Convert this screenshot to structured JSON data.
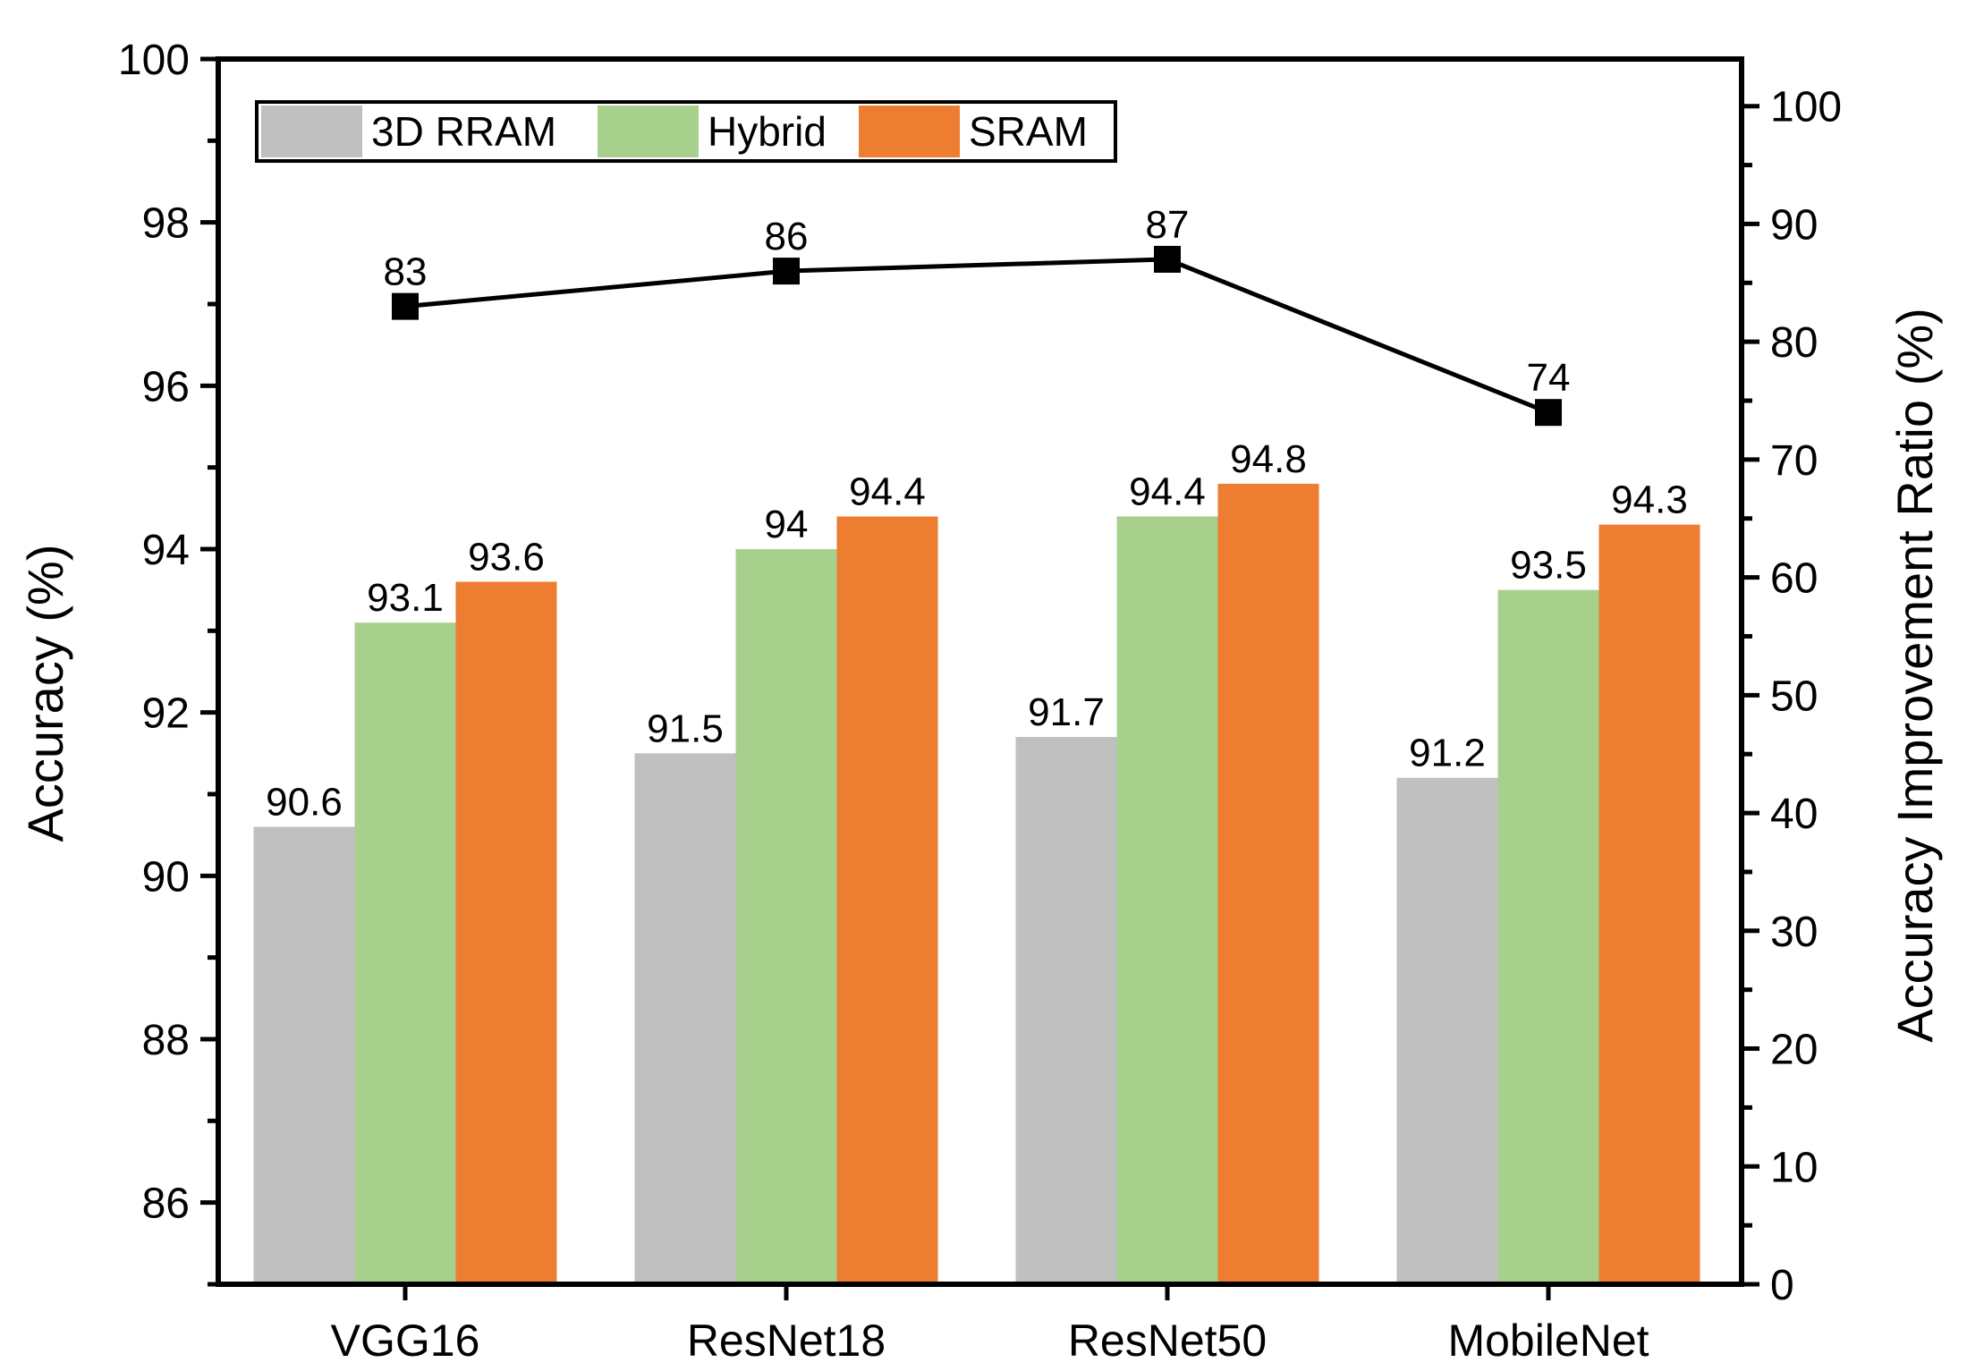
{
  "chart_data": {
    "type": "bar",
    "title": "",
    "categories": [
      "VGG16",
      "ResNet18",
      "ResNet50",
      "MobileNet"
    ],
    "series": [
      {
        "name": "3D RRAM",
        "color": "#c0c0c0",
        "values": [
          90.6,
          91.5,
          91.7,
          91.2
        ],
        "labels": [
          "90.6",
          "91.5",
          "91.7",
          "91.2"
        ]
      },
      {
        "name": "Hybrid",
        "color": "#a8d08d",
        "values": [
          93.1,
          94,
          94.4,
          93.5
        ],
        "labels": [
          "93.1",
          "94",
          "94.4",
          "93.5"
        ]
      },
      {
        "name": "SRAM",
        "color": "#ed7d31",
        "values": [
          93.6,
          94.4,
          94.8,
          94.3
        ],
        "labels": [
          "93.6",
          "94.4",
          "94.8",
          "94.3"
        ]
      }
    ],
    "line_series": {
      "name": "Accuracy Improvement Ratio",
      "color": "#000000",
      "marker": "square",
      "axis": "right",
      "values": [
        83,
        86,
        87,
        74
      ],
      "labels": [
        "83",
        "86",
        "87",
        "74"
      ]
    },
    "ylabel": "Accuracy (%)",
    "ylim": [
      85,
      100
    ],
    "yticks": [
      86,
      88,
      90,
      92,
      94,
      96,
      98,
      100
    ],
    "ytick_labels": [
      "86",
      "88",
      "90",
      "92",
      "94",
      "96",
      "98",
      "100"
    ],
    "y2label": "Accuracy Improvement Ratio (%)",
    "y2lim": [
      0,
      104
    ],
    "y2ticks": [
      0,
      10,
      20,
      30,
      40,
      50,
      60,
      70,
      80,
      90,
      100
    ],
    "y2tick_labels": [
      "0",
      "10",
      "20",
      "30",
      "40",
      "50",
      "60",
      "70",
      "80",
      "90",
      "100"
    ],
    "xlabel": "",
    "legend": {
      "position": "top-left",
      "items": [
        "3D RRAM",
        "Hybrid",
        "SRAM"
      ]
    },
    "grid": false
  }
}
